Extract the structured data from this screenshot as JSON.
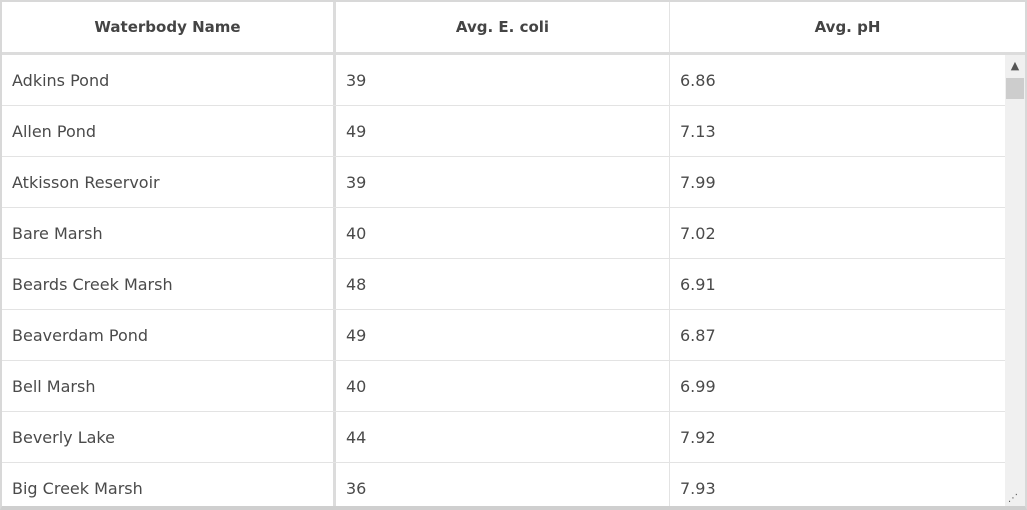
{
  "columns": [
    "Waterbody Name",
    "Avg. E. coli",
    "Avg. pH"
  ],
  "rows": [
    [
      "Adkins Pond",
      "39",
      "6.86"
    ],
    [
      "Allen Pond",
      "49",
      "7.13"
    ],
    [
      "Atkisson Reservoir",
      "39",
      "7.99"
    ],
    [
      "Bare Marsh",
      "40",
      "7.02"
    ],
    [
      "Beards Creek Marsh",
      "48",
      "6.91"
    ],
    [
      "Beaverdam Pond",
      "49",
      "6.87"
    ],
    [
      "Bell Marsh",
      "40",
      "6.99"
    ],
    [
      "Beverly Lake",
      "44",
      "7.92"
    ],
    [
      "Big Creek Marsh",
      "36",
      "7.93"
    ]
  ],
  "icons": {
    "scroll_up": "chevron-up-icon",
    "resize": "resize-grip-icon"
  }
}
